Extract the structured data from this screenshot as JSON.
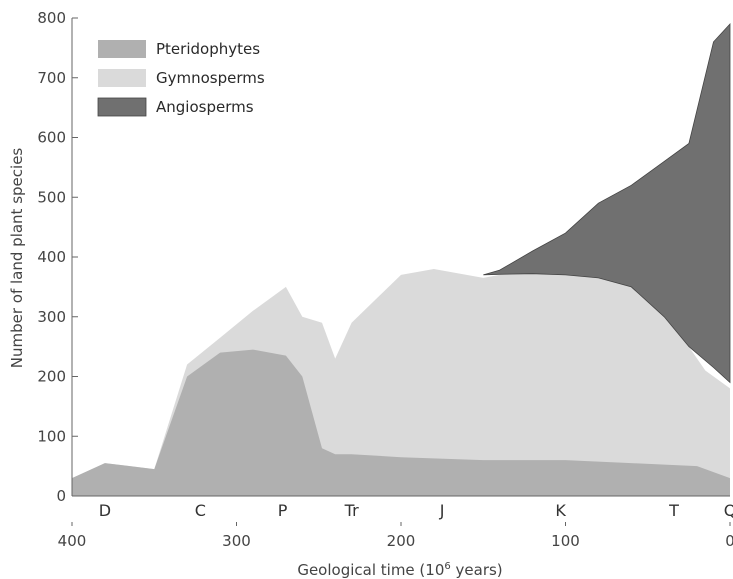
{
  "chart_data": {
    "type": "area",
    "xlabel": "Geological time (10",
    "xlabel_sup": "6",
    "xlabel_tail": " years)",
    "ylabel": "Number of land plant species",
    "xlim": [
      400,
      0
    ],
    "ylim": [
      0,
      800
    ],
    "x_ticks": [
      400,
      300,
      200,
      100,
      0
    ],
    "y_ticks": [
      0,
      100,
      200,
      300,
      400,
      500,
      600,
      700,
      800
    ],
    "grid": false,
    "legend_position": "top-left",
    "periods": [
      "D",
      "C",
      "P",
      "Tr",
      "J",
      "K",
      "T",
      "Q"
    ],
    "period_positions": [
      380,
      322,
      272,
      230,
      175,
      103,
      34,
      0
    ],
    "series": [
      {
        "name": "Pteridophytes",
        "color": "#b0b0b0",
        "x": [
          400,
          380,
          350,
          330,
          310,
          290,
          270,
          260,
          248,
          240,
          230,
          200,
          150,
          100,
          60,
          20,
          0
        ],
        "y": [
          30,
          55,
          45,
          200,
          240,
          245,
          235,
          200,
          80,
          70,
          70,
          65,
          60,
          60,
          55,
          50,
          30
        ]
      },
      {
        "name": "Gymnosperms",
        "color": "#dadada",
        "x": [
          400,
          380,
          350,
          330,
          310,
          290,
          270,
          260,
          248,
          240,
          230,
          200,
          180,
          150,
          140,
          100,
          60,
          30,
          15,
          0
        ],
        "y": [
          30,
          55,
          45,
          220,
          265,
          310,
          350,
          300,
          290,
          230,
          290,
          370,
          380,
          365,
          370,
          375,
          360,
          270,
          210,
          180
        ]
      },
      {
        "name": "Angiosperms",
        "color": "#707070",
        "x": [
          150,
          140,
          120,
          100,
          80,
          60,
          40,
          25,
          10,
          0,
          0,
          10,
          25,
          40,
          60,
          80,
          100,
          120,
          140,
          150
        ],
        "y": [
          370,
          378,
          410,
          440,
          490,
          520,
          560,
          590,
          760,
          790,
          190,
          215,
          250,
          300,
          350,
          365,
          370,
          372,
          371,
          370
        ]
      }
    ]
  }
}
